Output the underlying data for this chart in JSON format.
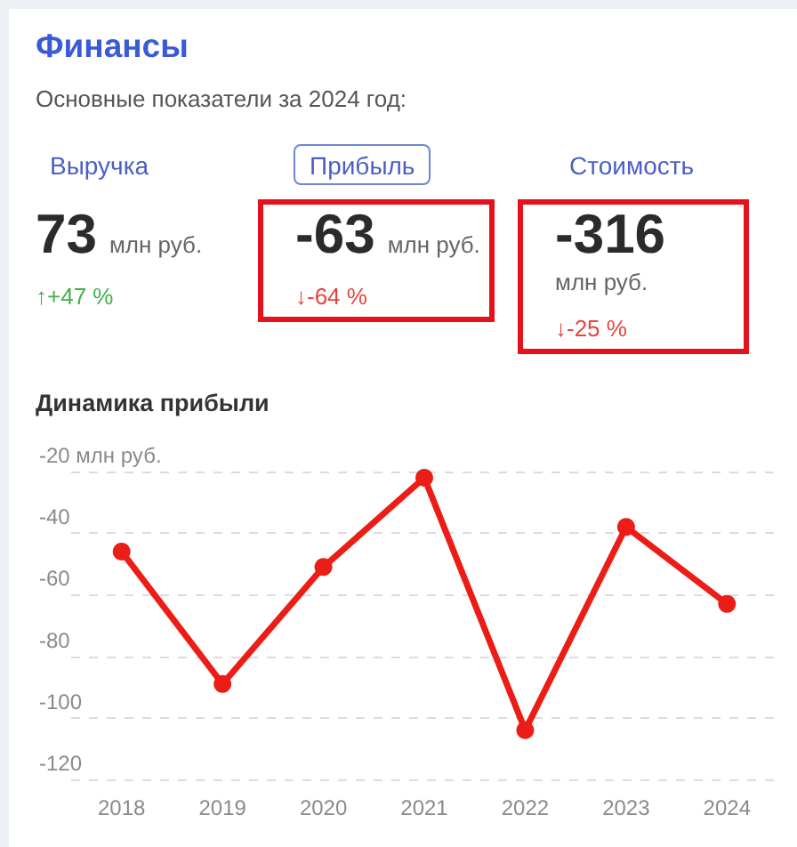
{
  "chart_data": [
    {
      "type": "other",
      "title": "Финансы",
      "subtitle": "Основные показатели за 2024 год:",
      "categories": [
        "Выручка",
        "Прибыль",
        "Стоимость"
      ],
      "values": [
        73,
        -63,
        -316
      ],
      "data_labels": true,
      "ylabel": "млн руб.",
      "annotations": [
        "↑+47 %",
        "↓-64 %",
        "↓-25 %"
      ],
      "colors": [
        "#41b04a",
        "#e8433e",
        "#e8433e"
      ]
    },
    {
      "type": "line",
      "title": "Динамика прибыли",
      "categories": [
        "2018",
        "2019",
        "2020",
        "2021",
        "2022",
        "2023",
        "2024"
      ],
      "series": [
        {
          "color": "#ec1d16",
          "values": [
            -46,
            -89,
            -51,
            -22,
            -104,
            -38,
            -63
          ]
        }
      ],
      "ylim": [
        -120,
        -20
      ],
      "yticks": [
        -120,
        -100,
        -80,
        -60,
        -40,
        {
          "value": -20,
          "label": "-20 млн руб."
        }
      ],
      "grid": "y",
      "marker": "circle",
      "line_style": "solid"
    }
  ]
}
